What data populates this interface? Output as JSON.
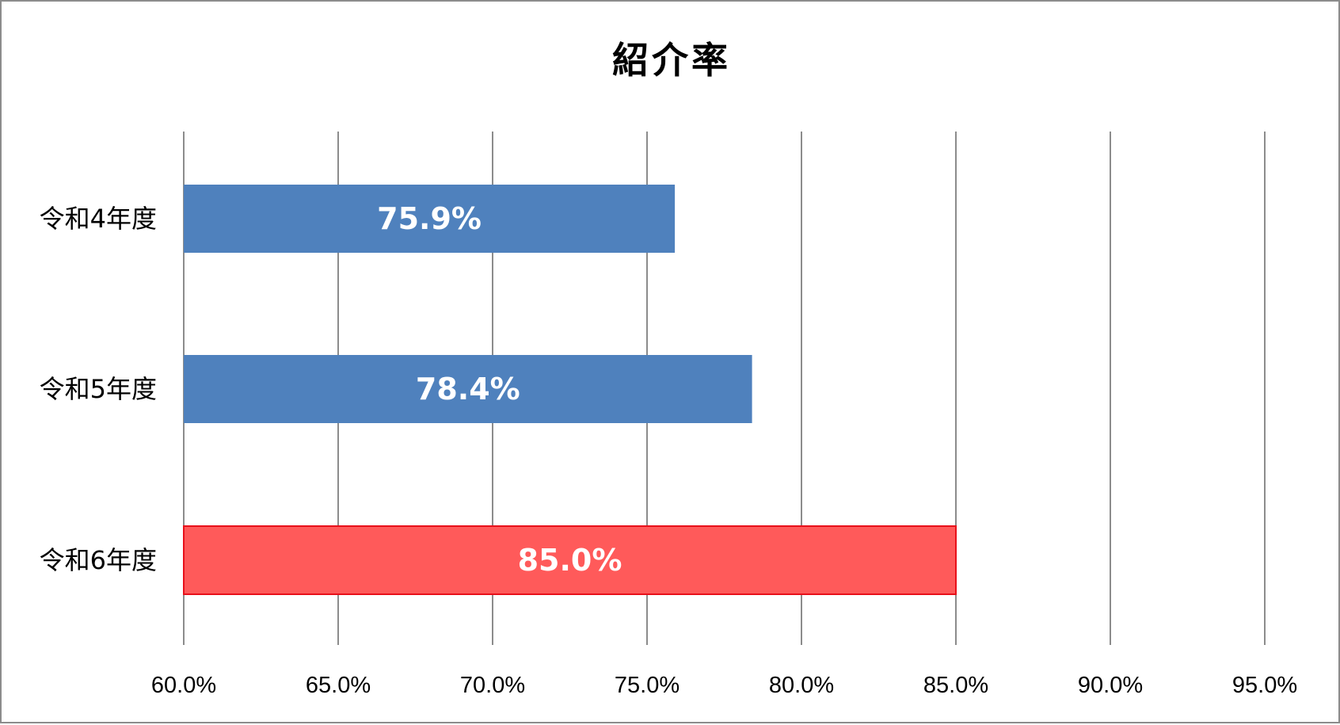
{
  "chart_data": {
    "type": "bar",
    "orientation": "horizontal",
    "title": "紹介率",
    "categories": [
      "令和4年度",
      "令和5年度",
      "令和6年度"
    ],
    "values": [
      75.9,
      78.4,
      85.0
    ],
    "data_labels": [
      "75.9%",
      "78.4%",
      "85.0%"
    ],
    "xlim": [
      60,
      95
    ],
    "x_ticks": [
      60,
      65,
      70,
      75,
      80,
      85,
      90,
      95
    ],
    "x_tick_labels": [
      "60.0%",
      "65.0%",
      "70.0%",
      "75.0%",
      "80.0%",
      "85.0%",
      "90.0%",
      "95.0%"
    ],
    "grid": true,
    "legend": "none",
    "colors": {
      "default_bar": "#4f81bd",
      "highlight_bar": "#ff5a5a",
      "highlight_border": "#e8101a",
      "grid": "#8c8c8c"
    },
    "highlight_index": 2
  }
}
